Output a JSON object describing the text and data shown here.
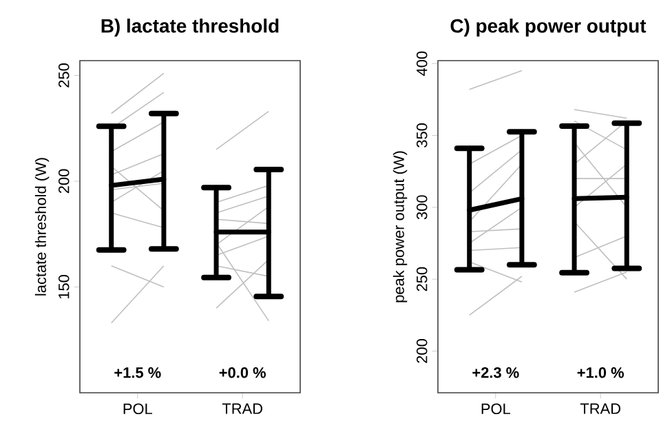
{
  "chart_data": [
    {
      "type": "line",
      "title": "B) lactate threshold",
      "ylabel": "lactate threshold (W)",
      "categories": [
        null,
        "POL",
        null,
        null,
        null,
        "TRAD",
        null
      ],
      "ylim": [
        100,
        257
      ],
      "yticks": [
        150,
        200,
        250
      ],
      "grid": false,
      "marker": "none",
      "series": [
        {
          "color": "#bfbfbf",
          "values": [
            232,
            null,
            251,
            null,
            null,
            null,
            null
          ]
        },
        {
          "color": "#bfbfbf",
          "values": [
            225,
            null,
            242,
            null,
            null,
            null,
            null
          ]
        },
        {
          "color": "#bfbfbf",
          "values": [
            214,
            null,
            228,
            null,
            null,
            null,
            null
          ]
        },
        {
          "color": "#bfbfbf",
          "values": [
            203,
            null,
            213,
            null,
            null,
            null,
            null
          ]
        },
        {
          "color": "#bfbfbf",
          "values": [
            196,
            null,
            199,
            null,
            null,
            null,
            null
          ]
        },
        {
          "color": "#bfbfbf",
          "values": [
            190,
            null,
            205,
            null,
            null,
            null,
            null
          ]
        },
        {
          "color": "#bfbfbf",
          "values": [
            207,
            null,
            186,
            null,
            null,
            null,
            null
          ]
        },
        {
          "color": "#bfbfbf",
          "values": [
            185,
            null,
            178,
            null,
            null,
            null,
            null
          ]
        },
        {
          "color": "#bfbfbf",
          "values": [
            160,
            null,
            150,
            null,
            null,
            null,
            null
          ]
        },
        {
          "color": "#bfbfbf",
          "values": [
            133,
            null,
            160,
            null,
            null,
            null,
            null
          ]
        },
        {
          "color": "#bfbfbf",
          "values": [
            null,
            null,
            null,
            null,
            215,
            null,
            233
          ]
        },
        {
          "color": "#bfbfbf",
          "values": [
            null,
            null,
            null,
            null,
            190,
            null,
            198
          ]
        },
        {
          "color": "#bfbfbf",
          "values": [
            null,
            null,
            null,
            null,
            185,
            null,
            193
          ]
        },
        {
          "color": "#bfbfbf",
          "values": [
            null,
            null,
            null,
            null,
            182,
            null,
            180
          ]
        },
        {
          "color": "#bfbfbf",
          "values": [
            null,
            null,
            null,
            null,
            170,
            null,
            188
          ]
        },
        {
          "color": "#bfbfbf",
          "values": [
            null,
            null,
            null,
            null,
            165,
            null,
            174
          ]
        },
        {
          "color": "#bfbfbf",
          "values": [
            null,
            null,
            null,
            null,
            160,
            null,
            155
          ]
        },
        {
          "color": "#bfbfbf",
          "values": [
            null,
            null,
            null,
            null,
            140,
            null,
            163
          ]
        },
        {
          "color": "#bfbfbf",
          "values": [
            null,
            null,
            null,
            null,
            171,
            null,
            134
          ]
        },
        {
          "color": "#000000",
          "values": [
            198,
            null,
            201,
            null,
            null,
            null,
            null
          ],
          "errors": [
            [
              167.5,
              226
            ],
            null,
            [
              168,
              232
            ],
            null,
            null,
            null,
            null
          ]
        },
        {
          "color": "#000000",
          "values": [
            null,
            null,
            null,
            null,
            176,
            null,
            176
          ],
          "errors": [
            null,
            null,
            null,
            null,
            [
              154.5,
              197
            ],
            null,
            [
              145.5,
              205.5
            ]
          ]
        }
      ],
      "annotations": [
        "+1.5 %",
        "+0.0 %"
      ]
    },
    {
      "type": "line",
      "title": "C) peak power output",
      "ylabel": "peak power output (W)",
      "categories": [
        null,
        "POL",
        null,
        null,
        null,
        "TRAD",
        null
      ],
      "ylim": [
        171,
        402
      ],
      "yticks": [
        200,
        250,
        300,
        350,
        400
      ],
      "grid": false,
      "marker": "none",
      "series": [
        {
          "color": "#bfbfbf",
          "values": [
            382,
            null,
            395,
            null,
            null,
            null,
            null
          ]
        },
        {
          "color": "#bfbfbf",
          "values": [
            330,
            null,
            350,
            null,
            null,
            null,
            null
          ]
        },
        {
          "color": "#bfbfbf",
          "values": [
            310,
            null,
            340,
            null,
            null,
            null,
            null
          ]
        },
        {
          "color": "#bfbfbf",
          "values": [
            290,
            null,
            330,
            null,
            null,
            null,
            null
          ]
        },
        {
          "color": "#bfbfbf",
          "values": [
            283,
            null,
            285,
            null,
            null,
            null,
            null
          ]
        },
        {
          "color": "#bfbfbf",
          "values": [
            275,
            null,
            300,
            null,
            null,
            null,
            null
          ]
        },
        {
          "color": "#bfbfbf",
          "values": [
            270,
            null,
            272,
            null,
            null,
            null,
            null
          ]
        },
        {
          "color": "#bfbfbf",
          "values": [
            262,
            null,
            248,
            null,
            null,
            null,
            null
          ]
        },
        {
          "color": "#bfbfbf",
          "values": [
            225,
            null,
            252,
            null,
            null,
            null,
            null
          ]
        },
        {
          "color": "#bfbfbf",
          "values": [
            null,
            null,
            null,
            null,
            368,
            null,
            362
          ]
        },
        {
          "color": "#bfbfbf",
          "values": [
            null,
            null,
            null,
            null,
            360,
            null,
            340
          ]
        },
        {
          "color": "#bfbfbf",
          "values": [
            null,
            null,
            null,
            null,
            345,
            null,
            300
          ]
        },
        {
          "color": "#bfbfbf",
          "values": [
            null,
            null,
            null,
            null,
            330,
            null,
            360
          ]
        },
        {
          "color": "#bfbfbf",
          "values": [
            null,
            null,
            null,
            null,
            320,
            null,
            320
          ]
        },
        {
          "color": "#bfbfbf",
          "values": [
            null,
            null,
            null,
            null,
            300,
            null,
            330
          ]
        },
        {
          "color": "#bfbfbf",
          "values": [
            null,
            null,
            null,
            null,
            290,
            null,
            250
          ]
        },
        {
          "color": "#bfbfbf",
          "values": [
            null,
            null,
            null,
            null,
            265,
            null,
            280
          ]
        },
        {
          "color": "#bfbfbf",
          "values": [
            null,
            null,
            null,
            null,
            241,
            null,
            255
          ]
        },
        {
          "color": "#000000",
          "values": [
            298,
            null,
            306,
            null,
            null,
            null,
            null
          ],
          "errors": [
            [
              256.5,
              341
            ],
            null,
            [
              260,
              352.5
            ],
            null,
            null,
            null,
            null
          ]
        },
        {
          "color": "#000000",
          "values": [
            null,
            null,
            null,
            null,
            306,
            null,
            307
          ],
          "errors": [
            null,
            null,
            null,
            null,
            [
              254.5,
              356.5
            ],
            null,
            [
              257.5,
              358.5
            ]
          ]
        }
      ],
      "annotations": [
        "+2.3 %",
        "+1.0 %"
      ]
    }
  ]
}
